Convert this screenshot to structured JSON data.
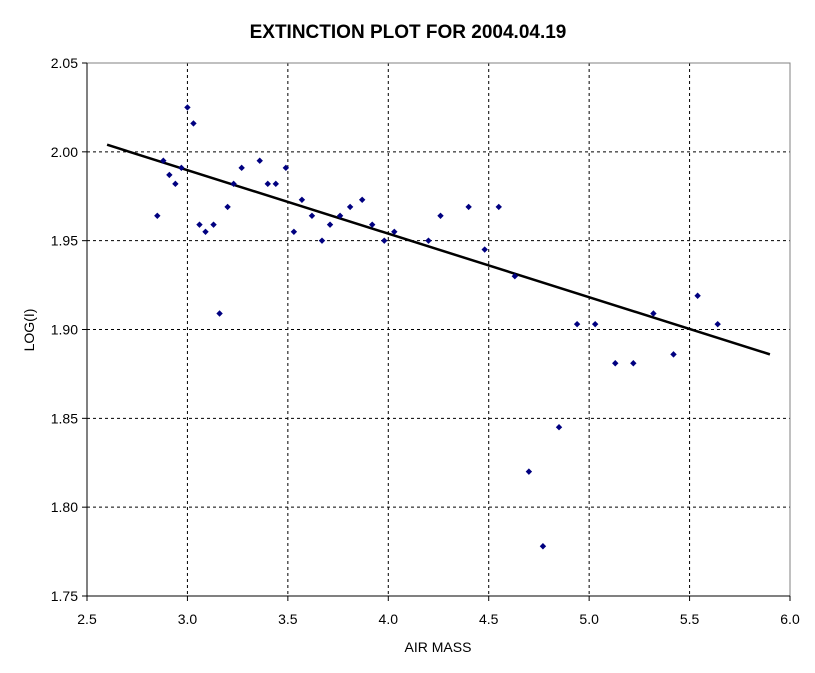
{
  "chart_data": {
    "type": "scatter",
    "title": "EXTINCTION PLOT FOR 2004.04.19",
    "xlabel": "AIR MASS",
    "ylabel": "LOG(I)",
    "xlim": [
      2.5,
      6.0
    ],
    "ylim": [
      1.75,
      2.05
    ],
    "x_ticks": [
      "2.5",
      "3.0",
      "3.5",
      "4.0",
      "4.5",
      "5.0",
      "5.5",
      "6.0"
    ],
    "y_ticks": [
      "1.75",
      "1.80",
      "1.85",
      "1.90",
      "1.95",
      "2.00",
      "2.05"
    ],
    "grid": true,
    "legend": "none",
    "marker_color": "#000080",
    "line_color": "#000000",
    "trendline": {
      "x": [
        2.6,
        5.9
      ],
      "y": [
        2.004,
        1.886
      ]
    },
    "points": [
      {
        "x": 2.85,
        "y": 1.964
      },
      {
        "x": 2.88,
        "y": 1.995
      },
      {
        "x": 2.91,
        "y": 1.987
      },
      {
        "x": 2.94,
        "y": 1.982
      },
      {
        "x": 2.97,
        "y": 1.991
      },
      {
        "x": 3.0,
        "y": 2.025
      },
      {
        "x": 3.03,
        "y": 2.016
      },
      {
        "x": 3.06,
        "y": 1.959
      },
      {
        "x": 3.09,
        "y": 1.955
      },
      {
        "x": 3.13,
        "y": 1.959
      },
      {
        "x": 3.16,
        "y": 1.909
      },
      {
        "x": 3.2,
        "y": 1.969
      },
      {
        "x": 3.23,
        "y": 1.982
      },
      {
        "x": 3.27,
        "y": 1.991
      },
      {
        "x": 3.36,
        "y": 1.995
      },
      {
        "x": 3.4,
        "y": 1.982
      },
      {
        "x": 3.44,
        "y": 1.982
      },
      {
        "x": 3.49,
        "y": 1.991
      },
      {
        "x": 3.53,
        "y": 1.955
      },
      {
        "x": 3.57,
        "y": 1.973
      },
      {
        "x": 3.62,
        "y": 1.964
      },
      {
        "x": 3.67,
        "y": 1.95
      },
      {
        "x": 3.71,
        "y": 1.959
      },
      {
        "x": 3.76,
        "y": 1.964
      },
      {
        "x": 3.81,
        "y": 1.969
      },
      {
        "x": 3.87,
        "y": 1.973
      },
      {
        "x": 3.92,
        "y": 1.959
      },
      {
        "x": 3.98,
        "y": 1.95
      },
      {
        "x": 4.03,
        "y": 1.955
      },
      {
        "x": 4.2,
        "y": 1.95
      },
      {
        "x": 4.26,
        "y": 1.964
      },
      {
        "x": 4.4,
        "y": 1.969
      },
      {
        "x": 4.48,
        "y": 1.945
      },
      {
        "x": 4.55,
        "y": 1.969
      },
      {
        "x": 4.63,
        "y": 1.93
      },
      {
        "x": 4.7,
        "y": 1.82
      },
      {
        "x": 4.77,
        "y": 1.778
      },
      {
        "x": 4.85,
        "y": 1.845
      },
      {
        "x": 4.94,
        "y": 1.903
      },
      {
        "x": 5.03,
        "y": 1.903
      },
      {
        "x": 5.13,
        "y": 1.881
      },
      {
        "x": 5.22,
        "y": 1.881
      },
      {
        "x": 5.32,
        "y": 1.909
      },
      {
        "x": 5.42,
        "y": 1.886
      },
      {
        "x": 5.54,
        "y": 1.919
      },
      {
        "x": 5.64,
        "y": 1.903
      }
    ]
  }
}
